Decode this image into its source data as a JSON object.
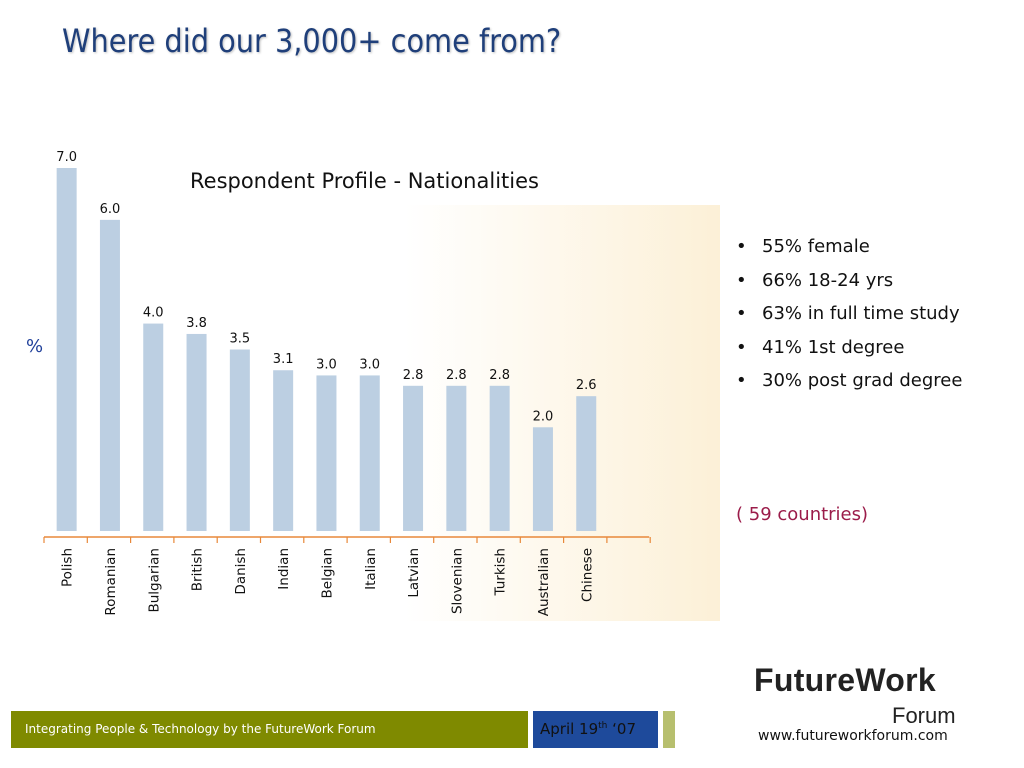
{
  "slide": {
    "title": "Where did our 3,000+ come from?"
  },
  "chart_data": {
    "type": "bar",
    "title": "Respondent Profile - Nationalities",
    "ylabel": "%",
    "xlabel": "",
    "ylim": [
      0,
      7.0
    ],
    "grid": false,
    "categories": [
      "Polish",
      "Romanian",
      "Bulgarian",
      "British",
      "Danish",
      "Indian",
      "Belgian",
      "Italian",
      "Latvian",
      "Slovenian",
      "Turkish",
      "Australian",
      "Chinese"
    ],
    "values": [
      7.0,
      6.0,
      4.0,
      3.8,
      3.5,
      3.1,
      3.0,
      3.0,
      2.8,
      2.8,
      2.8,
      2.0,
      2.6
    ],
    "data_labels": [
      "7.0",
      "6.0",
      "4.0",
      "3.8",
      "3.5",
      "3.1",
      "3.0",
      "3.0",
      "2.8",
      "2.8",
      "2.8",
      "2.0",
      "2.6"
    ],
    "bar_color": "#bccfe2"
  },
  "profile": {
    "bullets": [
      "55% female",
      "66% 18-24 yrs",
      "63% in full time study",
      "41% 1st degree",
      "30% post grad degree"
    ],
    "countries_note": "( 59 countries)"
  },
  "logo": {
    "main": "FutureWork",
    "sub": "Forum",
    "website": "www.futureworkforum.com"
  },
  "footer": {
    "tagline": "Integrating People & Technology by the FutureWork Forum",
    "date_prefix": "April 19",
    "date_sup": "th",
    "date_suffix": " ‘07"
  },
  "colors": {
    "title": "#1f3f7a",
    "axis": "#e8883a",
    "footer_bar": "#7f8a00",
    "date_box": "#1e4a9b",
    "note": "#9b1c4a"
  }
}
